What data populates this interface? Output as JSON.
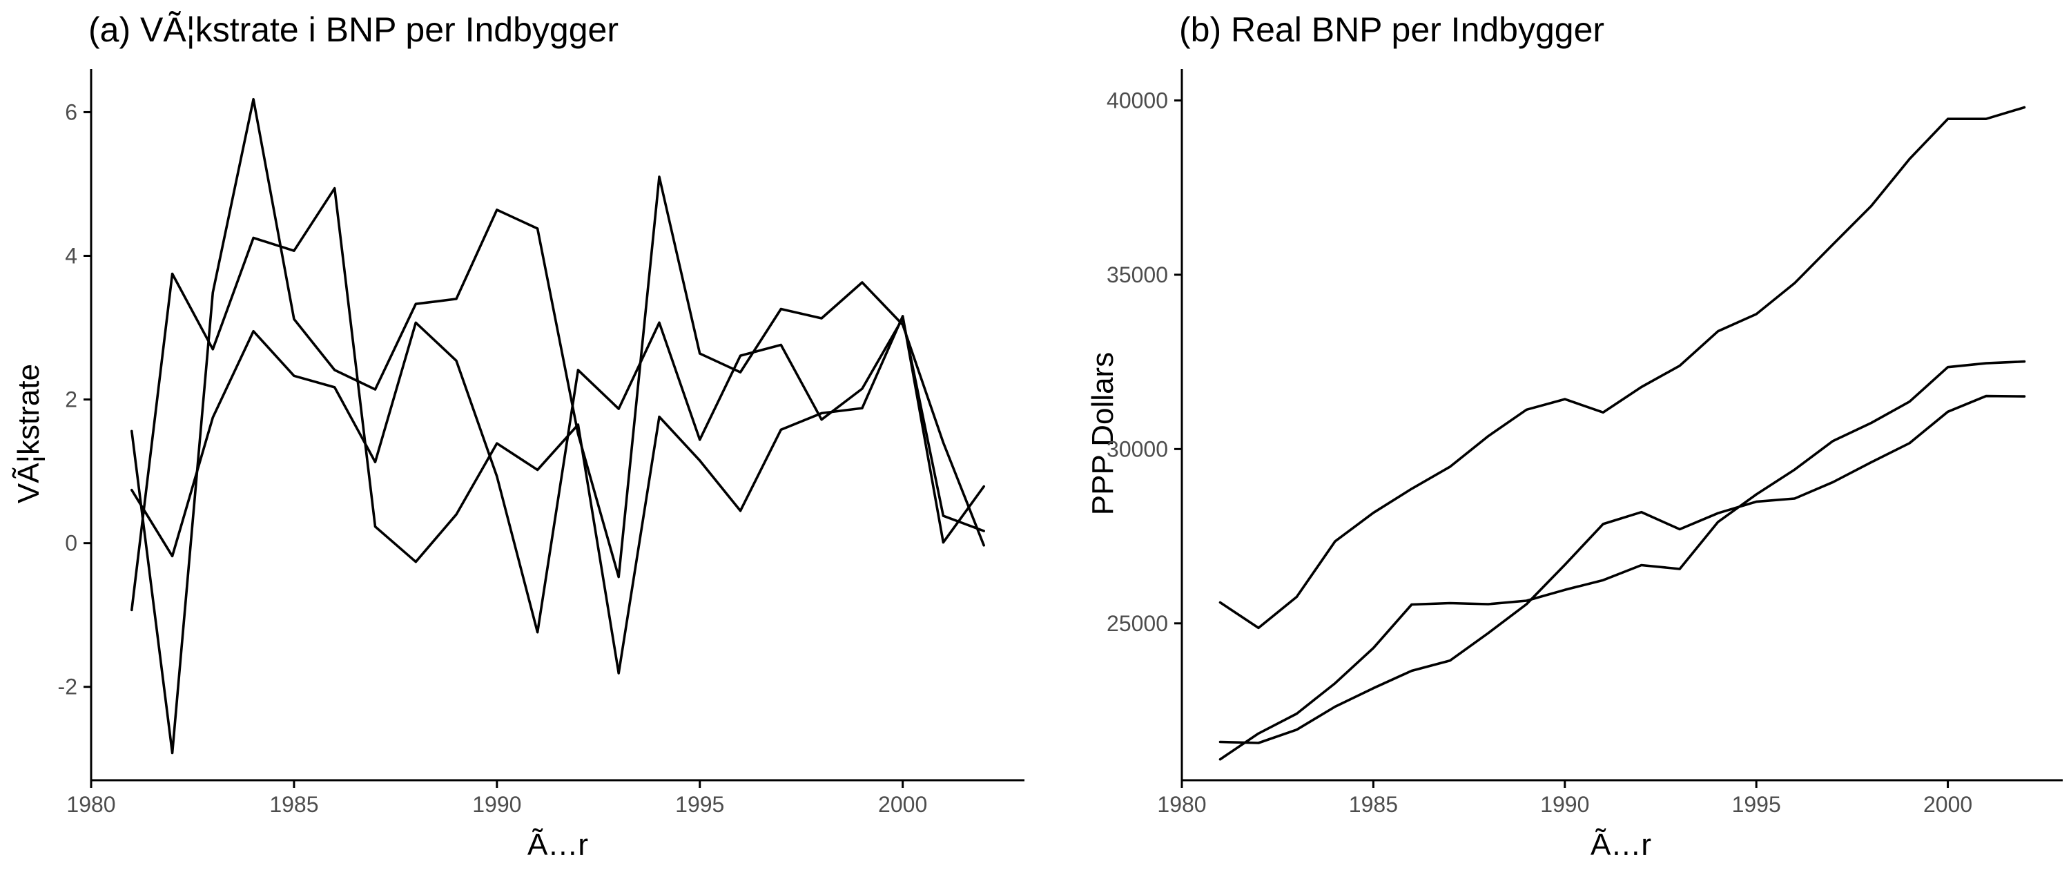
{
  "chart_data": [
    {
      "type": "line",
      "title": "(a) VÃ¦kstrate i BNP per Indbygger",
      "xlabel": "Ã…r",
      "ylabel": "VÃ¦kstrate",
      "xlim": [
        1980,
        2003
      ],
      "ylim": [
        -3.3,
        6.6
      ],
      "x_ticks": [
        1980,
        1985,
        1990,
        1995,
        2000
      ],
      "y_ticks": [
        -2,
        0,
        2,
        4,
        6
      ],
      "x_tick_labels": [
        "1980",
        "1985",
        "1990",
        "1995",
        "2000"
      ],
      "y_tick_labels": [
        "-2",
        "0",
        "2",
        "4",
        "6"
      ],
      "grid": false,
      "legend": "none",
      "x": [
        1981,
        1982,
        1983,
        1984,
        1985,
        1986,
        1987,
        1988,
        1989,
        1990,
        1991,
        1992,
        1993,
        1994,
        1995,
        1996,
        1997,
        1998,
        1999,
        2000,
        2001,
        2002
      ],
      "series": [
        {
          "values": [
            1.56,
            -2.92,
            3.49,
            6.18,
            3.12,
            2.41,
            2.14,
            3.33,
            3.4,
            4.64,
            4.38,
            1.52,
            -0.47,
            5.1,
            2.64,
            2.38,
            3.26,
            3.13,
            3.63,
            3.04,
            1.4,
            -0.03
          ]
        },
        {
          "values": [
            -0.93,
            3.75,
            2.7,
            4.25,
            4.07,
            4.94,
            0.23,
            -0.26,
            0.4,
            1.39,
            1.02,
            1.65,
            -1.81,
            1.76,
            1.15,
            0.45,
            1.58,
            1.81,
            1.88,
            3.16,
            0.01,
            0.79
          ]
        },
        {
          "values": [
            0.74,
            -0.18,
            1.75,
            2.95,
            2.33,
            2.17,
            1.13,
            3.07,
            2.54,
            0.93,
            -1.24,
            2.41,
            1.87,
            3.07,
            1.44,
            2.61,
            2.76,
            1.72,
            2.15,
            3.13,
            0.38,
            0.17
          ]
        }
      ]
    },
    {
      "type": "line",
      "title": "(b) Real BNP per Indbygger",
      "xlabel": "Ã…r",
      "ylabel": "PPP Dollars",
      "xlim": [
        1980,
        2003
      ],
      "ylim": [
        20500,
        40900
      ],
      "x_ticks": [
        1980,
        1985,
        1990,
        1995,
        2000
      ],
      "y_ticks": [
        25000,
        30000,
        35000,
        40000
      ],
      "x_tick_labels": [
        "1980",
        "1985",
        "1990",
        "1995",
        "2000"
      ],
      "y_tick_labels": [
        "25000",
        "30000",
        "35000",
        "40000"
      ],
      "grid": false,
      "legend": "none",
      "x": [
        1981,
        1982,
        1983,
        1984,
        1985,
        1986,
        1987,
        1988,
        1989,
        1990,
        1991,
        1992,
        1993,
        1994,
        1995,
        1996,
        1997,
        1998,
        1999,
        2000,
        2001,
        2002
      ],
      "series": [
        {
          "values": [
            25600,
            24870,
            25760,
            27350,
            28170,
            28860,
            29490,
            30370,
            31130,
            31430,
            31050,
            31780,
            32390,
            33380,
            33870,
            34760,
            35870,
            36970,
            38320,
            39470,
            39470,
            39800
          ]
        },
        {
          "values": [
            21100,
            21840,
            22410,
            23280,
            24290,
            25540,
            25580,
            25550,
            25650,
            25960,
            26240,
            26670,
            26560,
            27910,
            28700,
            29410,
            30230,
            30750,
            31360,
            32350,
            32460,
            32510
          ]
        },
        {
          "values": [
            21600,
            21570,
            21950,
            22610,
            23140,
            23640,
            23930,
            24720,
            25550,
            26680,
            27850,
            28190,
            27700,
            28160,
            28490,
            28580,
            29050,
            29620,
            30170,
            31070,
            31520,
            31510
          ]
        }
      ]
    }
  ]
}
